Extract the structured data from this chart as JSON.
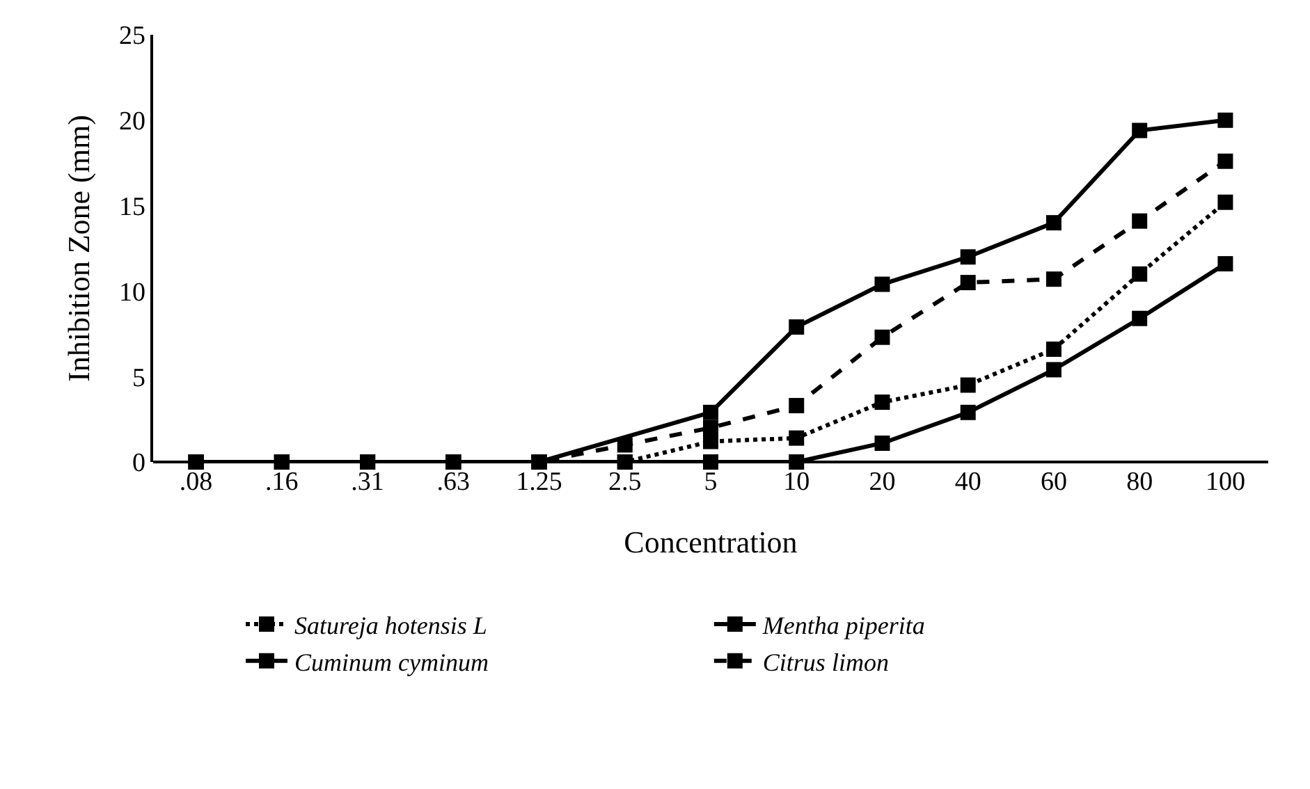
{
  "chart_data": {
    "type": "line",
    "xlabel": "Concentration",
    "ylabel": "Inhibition Zone (mm)",
    "categories": [
      ".08",
      ".16",
      ".31",
      ".63",
      "1.25",
      "2.5",
      "5",
      "10",
      "20",
      "40",
      "60",
      "80",
      "100"
    ],
    "series": [
      {
        "name": "Satureja hotensis L",
        "color": "#000000",
        "line_style": "dotted",
        "values": [
          0,
          0,
          0,
          0,
          0,
          0,
          1.2,
          1.4,
          3.5,
          4.5,
          6.6,
          11,
          15.2
        ]
      },
      {
        "name": "Mentha piperita",
        "color": "#000000",
        "line_style": "solid",
        "values": [
          0,
          0,
          0,
          0,
          0,
          null,
          2.9,
          7.9,
          10.4,
          12,
          14,
          19.4,
          20
        ]
      },
      {
        "name": "Cuminum cyminum",
        "color": "#000000",
        "line_style": "solid",
        "values": [
          0,
          0,
          0,
          0,
          0,
          0,
          0,
          0,
          1.1,
          2.9,
          5.4,
          8.4,
          11.6
        ]
      },
      {
        "name": "Citrus limon",
        "color": "#000000",
        "line_style": "dashed",
        "values": [
          0,
          0,
          0,
          0,
          0,
          1,
          2,
          3.3,
          7.3,
          10.5,
          10.7,
          14.1,
          17.6
        ]
      }
    ],
    "ylim": [
      0,
      25
    ],
    "yticks": [
      0,
      5,
      10,
      15,
      20,
      25
    ],
    "grid": false,
    "legend": "bottom",
    "marker": "square"
  }
}
